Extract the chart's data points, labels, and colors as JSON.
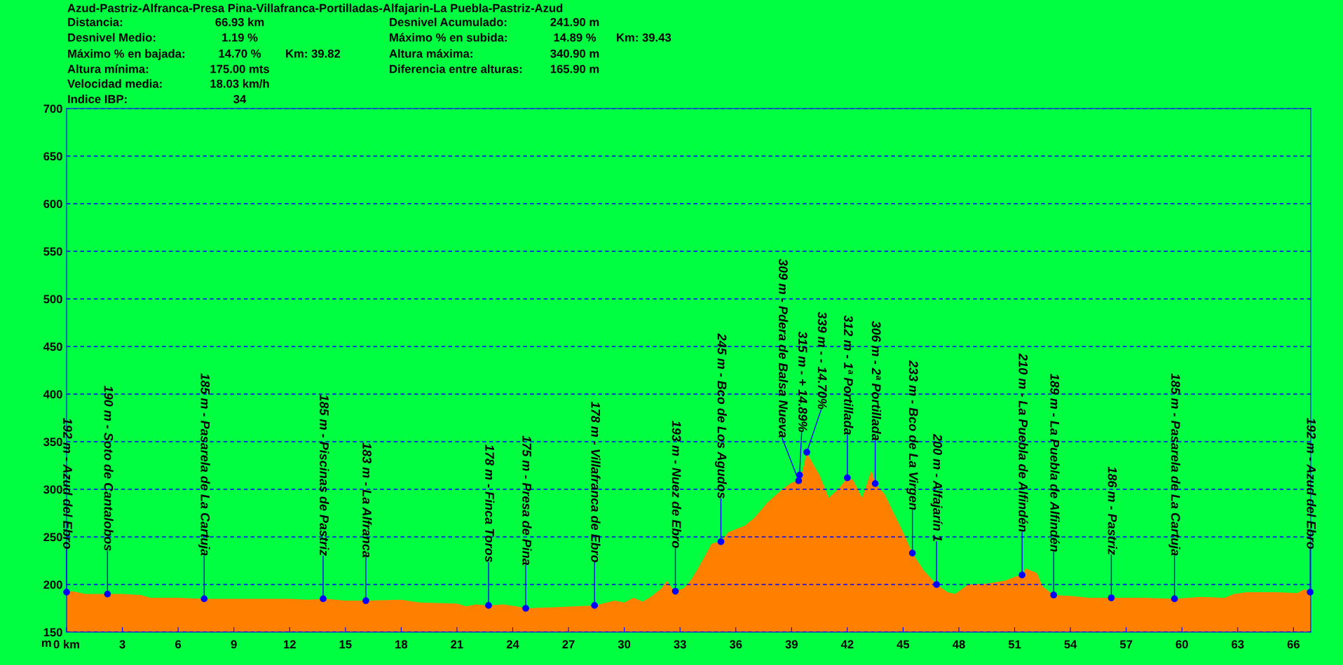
{
  "chart_data": {
    "type": "area",
    "title": "Azud-Pastriz-Alfranca-Presa Pina-Villafranca-Portilladas-Alfajarin-La Puebla-Pastriz-Azud",
    "ylabel": "m",
    "xlim": [
      0,
      66.93
    ],
    "ylim": [
      150,
      700
    ],
    "xticks": [
      {
        "value": 0,
        "label": "0 km"
      },
      3,
      6,
      9,
      12,
      15,
      18,
      21,
      24,
      27,
      30,
      33,
      36,
      39,
      42,
      45,
      48,
      51,
      54,
      57,
      60,
      63,
      66
    ],
    "yticks": [
      150,
      200,
      250,
      300,
      350,
      400,
      450,
      500,
      550,
      600,
      650,
      700
    ],
    "grid": "y",
    "line_style": "dashed",
    "series": [
      {
        "color": "#ff8000",
        "x": [
          0,
          0.3,
          1,
          2.2,
          3,
          4,
          4.5,
          6,
          7.4,
          10,
          12,
          13,
          14,
          15,
          16.1,
          18,
          19,
          21,
          21.5,
          22,
          22.7,
          23.5,
          24.2,
          24.7,
          26,
          28.4,
          29.5,
          30,
          30.5,
          31,
          31.5,
          32,
          32.3,
          32.6,
          32.75,
          33.2,
          33.6,
          34,
          34.4,
          34.7,
          35.2,
          35.6,
          36.5,
          37,
          37.7,
          38.5,
          39,
          39.38,
          39.6,
          39.82,
          40.2,
          40.5,
          41,
          41.5,
          42,
          42.3,
          42.8,
          43.3,
          43.5,
          44,
          44.5,
          45,
          45.5,
          46.1,
          46.8,
          47.4,
          47.8,
          48.5,
          49.5,
          50.5,
          51,
          51.4,
          51.6,
          52.2,
          52.5,
          53.1,
          54,
          55,
          56.2,
          58,
          59.6,
          61,
          62.3,
          62.8,
          63.5,
          65,
          66.2,
          66.6,
          66.9
        ],
        "values": [
          192,
          193,
          190,
          190,
          190,
          189,
          186,
          186,
          185,
          185,
          185,
          184,
          185,
          183,
          183,
          184,
          181,
          180,
          177,
          179,
          178,
          179,
          177,
          175,
          176,
          178,
          183,
          181,
          186,
          182,
          188,
          196,
          204,
          195,
          193,
          196,
          205,
          218,
          232,
          243,
          245,
          255,
          262,
          270,
          286,
          300,
          307,
          309,
          320,
          339,
          325,
          315,
          291,
          300,
          312,
          310,
          291,
          320,
          306,
          295,
          275,
          255,
          233,
          215,
          200,
          192,
          190,
          200,
          201,
          204,
          208,
          210,
          217,
          212,
          198,
          189,
          188,
          186,
          186,
          186,
          185,
          187,
          186,
          190,
          192,
          192,
          191,
          195,
          192
        ]
      },
      {
        "type": "scatter",
        "color": "#0000ff",
        "marker": "circle",
        "x": [
          0,
          2.2,
          7.4,
          13.8,
          16.1,
          22.7,
          24.7,
          28.4,
          32.75,
          35.2,
          39.38,
          39.43,
          39.82,
          42.0,
          43.5,
          45.5,
          46.8,
          51.4,
          53.1,
          56.2,
          59.6,
          66.9
        ],
        "values": [
          192,
          190,
          185,
          185,
          183,
          178,
          175,
          178,
          193,
          245,
          309,
          315,
          339,
          312,
          306,
          233,
          200,
          210,
          189,
          186,
          185,
          192
        ]
      }
    ],
    "annotations": [
      "Distancia:",
      "66.93 km",
      "Desnivel Acumulado:",
      "241.90 m",
      "Desnivel Medio:",
      "1.19 %",
      "Máximo % en subida:",
      "14.89 %",
      "Km: 39.43",
      "Máximo % en bajada:",
      "14.70 %",
      "Km: 39.82",
      "Altura máxima:",
      "340.90 m",
      "Altura mínima:",
      "175.00 mts",
      "Diferencia entre alturas:",
      "165.90 m",
      "Velocidad media:",
      "18.03 km/h",
      "Indice IBP:",
      "34",
      {
        "text": "192 m - Azud del Ebro",
        "x": 0,
        "y": 192
      },
      {
        "text": "190 m - Soto de Cantalobos",
        "x": 2.2,
        "y": 190
      },
      {
        "text": "185 m - Pasarela de La Cartuja",
        "x": 7.4,
        "y": 185
      },
      {
        "text": "185 m - Piscinas de Pastriz",
        "x": 13.8,
        "y": 185
      },
      {
        "text": "183 m - La Alfranca",
        "x": 16.1,
        "y": 183
      },
      {
        "text": "178 m - Finca Toros",
        "x": 22.7,
        "y": 178
      },
      {
        "text": "175 m - Presa de Pina",
        "x": 24.7,
        "y": 175
      },
      {
        "text": "178 m - Villafranca de Ebro",
        "x": 28.4,
        "y": 178
      },
      {
        "text": "193 m - Nuez de Ebro",
        "x": 32.75,
        "y": 193
      },
      {
        "text": "245 m - Bco de Los Agudos",
        "x": 35.2,
        "y": 245
      },
      {
        "text": "309 m - Pdera de Balsa Nueva",
        "x": 39.38,
        "y": 309
      },
      {
        "text": "315 m - + 14.89%",
        "x": 39.43,
        "y": 315
      },
      {
        "text": "339 m - - 14.70%",
        "x": 39.82,
        "y": 339
      },
      {
        "text": "312 m - 1ª Portillada",
        "x": 42.0,
        "y": 312
      },
      {
        "text": "306 m - 2ª Portillada",
        "x": 43.5,
        "y": 306
      },
      {
        "text": "233 m - Bco de La Virgen",
        "x": 45.5,
        "y": 233
      },
      {
        "text": "200 m - Alfajarín 1",
        "x": 46.8,
        "y": 200
      },
      {
        "text": "210 m - La Puebla de Alfindén",
        "x": 51.4,
        "y": 210
      },
      {
        "text": "189 m - La Puebla de Alfindén",
        "x": 53.1,
        "y": 189
      },
      {
        "text": "186 m - Pastriz",
        "x": 56.2,
        "y": 186
      },
      {
        "text": "185 m - Pasarela de La Cartuja",
        "x": 59.6,
        "y": 185
      },
      {
        "text": "192 m - Azud del Ebro",
        "x": 66.9,
        "y": 192
      }
    ]
  }
}
